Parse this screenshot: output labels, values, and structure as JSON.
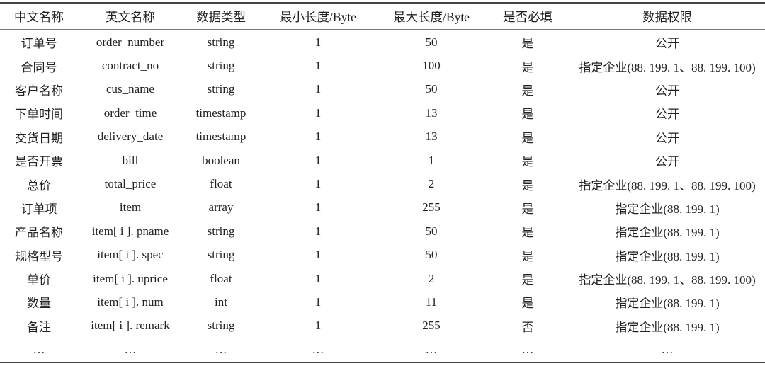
{
  "table": {
    "headers": [
      "中文名称",
      "英文名称",
      "数据类型",
      "最小长度/Byte",
      "最大长度/Byte",
      "是否必填",
      "数据权限"
    ],
    "rows": [
      [
        "订单号",
        "order_number",
        "string",
        "1",
        "50",
        "是",
        "公开"
      ],
      [
        "合同号",
        "contract_no",
        "string",
        "1",
        "100",
        "是",
        "指定企业(88. 199. 1、88. 199. 100)"
      ],
      [
        "客户名称",
        "cus_name",
        "string",
        "1",
        "50",
        "是",
        "公开"
      ],
      [
        "下单时间",
        "order_time",
        "timestamp",
        "1",
        "13",
        "是",
        "公开"
      ],
      [
        "交货日期",
        "delivery_date",
        "timestamp",
        "1",
        "13",
        "是",
        "公开"
      ],
      [
        "是否开票",
        "bill",
        "boolean",
        "1",
        "1",
        "是",
        "公开"
      ],
      [
        "总价",
        "total_price",
        "float",
        "1",
        "2",
        "是",
        "指定企业(88. 199. 1、88. 199. 100)"
      ],
      [
        "订单项",
        "item",
        "array",
        "1",
        "255",
        "是",
        "指定企业(88. 199. 1)"
      ],
      [
        "产品名称",
        "item[ i ]. pname",
        "string",
        "1",
        "50",
        "是",
        "指定企业(88. 199. 1)"
      ],
      [
        "规格型号",
        "item[ i ]. spec",
        "string",
        "1",
        "50",
        "是",
        "指定企业(88. 199. 1)"
      ],
      [
        "单价",
        "item[ i ]. uprice",
        "float",
        "1",
        "2",
        "是",
        "指定企业(88. 199. 1、88. 199. 100)"
      ],
      [
        "数量",
        "item[ i ]. num",
        "int",
        "1",
        "11",
        "是",
        "指定企业(88. 199. 1)"
      ],
      [
        "备注",
        "item[ i ]. remark",
        "string",
        "1",
        "255",
        "否",
        "指定企业(88. 199. 1)"
      ],
      [
        "…",
        "…",
        "…",
        "…",
        "…",
        "…",
        "…"
      ]
    ]
  }
}
